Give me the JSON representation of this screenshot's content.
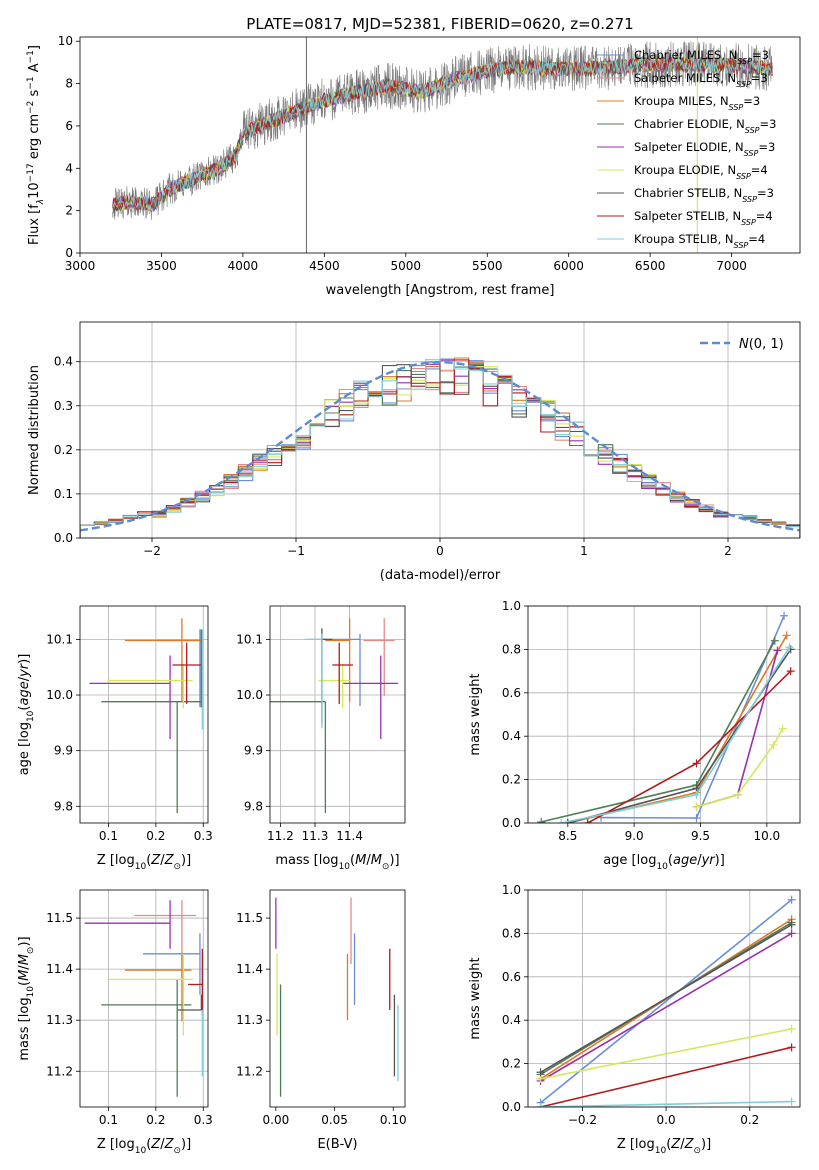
{
  "figure_title": "PLATE=0817, MJD=52381, FIBERID=0620, z=0.271",
  "colors": {
    "Chabrier MILES": "#6a8fd8",
    "Salpeter MILES": "#e58a8a",
    "Kroupa MILES": "#e0782a",
    "Chabrier ELODIE": "#4f7d58",
    "Salpeter ELODIE": "#9b2fae",
    "Kroupa ELODIE": "#d6e85a",
    "Chabrier STELIB": "#555555",
    "Salpeter STELIB": "#b31b1b",
    "Kroupa STELIB": "#7fcfd9",
    "normal": "#5b8bd6"
  },
  "chart_data": [
    {
      "id": "spectrum",
      "type": "line",
      "title": "PLATE=0817, MJD=52381, FIBERID=0620, z=0.271",
      "xlabel": "wavelength [Angstrom, rest frame]",
      "ylabel": "Flux [f_λ 10^-17 erg cm^-2 s^-1 A^-1]",
      "xlim": [
        3000,
        7420
      ],
      "ylim": [
        0,
        10.2
      ],
      "xticks": [
        3000,
        3500,
        4000,
        4500,
        5000,
        5500,
        6000,
        6500,
        7000
      ],
      "yticks": [
        0,
        2,
        4,
        6,
        8,
        10
      ],
      "grid": false,
      "legend_position": "right",
      "continuum": {
        "x": [
          3200,
          3300,
          3450,
          3550,
          3700,
          3850,
          3950,
          4000,
          4100,
          4300,
          4500,
          4700,
          4900,
          5100,
          5300,
          5500,
          5700,
          5900,
          6100,
          6300,
          6500,
          6700,
          6900,
          7100,
          7250
        ],
        "y": [
          2.3,
          2.4,
          2.3,
          3.0,
          3.5,
          4.0,
          4.5,
          5.6,
          6.0,
          6.6,
          7.2,
          7.6,
          7.9,
          7.6,
          8.2,
          8.6,
          8.8,
          8.7,
          8.7,
          8.8,
          8.9,
          8.9,
          8.9,
          8.8,
          8.7
        ]
      },
      "series": [
        {
          "name": "Chabrier MILES, N_SSP=3"
        },
        {
          "name": "Salpeter MILES, N_SSP=3"
        },
        {
          "name": "Kroupa MILES, N_SSP=3"
        },
        {
          "name": "Chabrier ELODIE, N_SSP=3"
        },
        {
          "name": "Salpeter ELODIE, N_SSP=3"
        },
        {
          "name": "Kroupa ELODIE, N_SSP=4"
        },
        {
          "name": "Chabrier STELIB, N_SSP=3"
        },
        {
          "name": "Salpeter STELIB, N_SSP=4"
        },
        {
          "name": "Kroupa STELIB, N_SSP=4"
        }
      ],
      "legend": [
        "Chabrier MILES, N_SSP=3",
        "Salpeter MILES, N_SSP=3",
        "Kroupa MILES, N_SSP=3",
        "Chabrier ELODIE, N_SSP=3",
        "Salpeter ELODIE, N_SSP=3",
        "Kroupa ELODIE, N_SSP=4",
        "Chabrier STELIB, N_SSP=3",
        "Salpeter STELIB, N_SSP=4",
        "Kroupa STELIB, N_SSP=4"
      ]
    },
    {
      "id": "residuals",
      "type": "histogram",
      "xlabel": "(data-model)/error",
      "ylabel": "Normed distribution",
      "xlim": [
        -2.5,
        2.5
      ],
      "ylim": [
        0,
        0.49
      ],
      "xticks": [
        -2,
        -1,
        0,
        1,
        2
      ],
      "yticks": [
        0.0,
        0.1,
        0.2,
        0.3,
        0.4
      ],
      "grid": true,
      "legend_position": "top-right",
      "legend": [
        "N(0,1)"
      ],
      "bin_width": 0.1,
      "bins_start": -2.5,
      "reference_curve": {
        "name": "N(0,1)",
        "mean": 0,
        "sigma": 1
      }
    },
    {
      "id": "age-vs-Z",
      "type": "errorbar",
      "xlabel": "Z [log10(Z/Z_sun)]",
      "ylabel": "age [log10(age/yr)]",
      "xlim": [
        0.04,
        0.31
      ],
      "ylim": [
        9.77,
        10.16
      ],
      "xticks": [
        0.1,
        0.2,
        0.3
      ],
      "yticks": [
        9.8,
        9.9,
        10.0,
        10.1
      ],
      "grid": true,
      "points": [
        {
          "series": "Chabrier MILES",
          "x": 0.293,
          "xerr": [
            0.09,
            0.0
          ],
          "y": 10.098,
          "yerr": [
            0.12,
            0.02
          ]
        },
        {
          "series": "Kroupa MILES",
          "x": 0.255,
          "xerr": [
            0.12,
            0.04
          ],
          "y": 10.098,
          "yerr": [
            0.11,
            0.04
          ]
        },
        {
          "series": "Chabrier ELODIE",
          "x": 0.245,
          "xerr": [
            0.16,
            0.05
          ],
          "y": 9.988,
          "yerr": [
            0.2,
            0.0
          ]
        },
        {
          "series": "Salpeter ELODIE",
          "x": 0.23,
          "xerr": [
            0.17,
            0.0
          ],
          "y": 10.021,
          "yerr": [
            0.1,
            0.05
          ]
        },
        {
          "series": "Kroupa ELODIE",
          "x": 0.258,
          "xerr": [
            0.16,
            0.02
          ],
          "y": 10.026,
          "yerr": [
            0.05,
            0.03
          ]
        },
        {
          "series": "Chabrier STELIB",
          "x": 0.296,
          "xerr": [
            0.0,
            0.0
          ],
          "y": 10.098,
          "yerr": [
            0.12,
            0.02
          ]
        },
        {
          "series": "Salpeter STELIB",
          "x": 0.265,
          "xerr": [
            0.03,
            0.03
          ],
          "y": 10.054,
          "yerr": [
            0.07,
            0.04
          ]
        },
        {
          "series": "Kroupa STELIB",
          "x": 0.298,
          "xerr": [
            0.0,
            0.0
          ],
          "y": 10.098,
          "yerr": [
            0.16,
            0.02
          ]
        }
      ]
    },
    {
      "id": "age-vs-mass",
      "type": "errorbar",
      "xlabel": "mass [log10(M/M_sun)]",
      "ylabel": "",
      "xlim": [
        11.17,
        11.56
      ],
      "ylim": [
        9.77,
        10.16
      ],
      "xticks": [
        11.2,
        11.3,
        11.4
      ],
      "yticks": [
        9.8,
        9.9,
        10.0,
        10.1
      ],
      "grid": true,
      "points": [
        {
          "series": "Chabrier MILES",
          "x": 11.43,
          "xerr": [
            0.15,
            0.0
          ],
          "y": 10.1,
          "yerr": [
            0.12,
            0.01
          ]
        },
        {
          "series": "Salpeter MILES",
          "x": 11.5,
          "xerr": [
            0.06,
            0.03
          ],
          "y": 10.098,
          "yerr": [
            0.1,
            0.04
          ]
        },
        {
          "series": "Kroupa MILES",
          "x": 11.4,
          "xerr": [
            0.07,
            0.0
          ],
          "y": 10.098,
          "yerr": [
            0.11,
            0.04
          ]
        },
        {
          "series": "Chabrier ELODIE",
          "x": 11.33,
          "xerr": [
            0.16,
            0.0
          ],
          "y": 9.988,
          "yerr": [
            0.2,
            0.0
          ]
        },
        {
          "series": "Salpeter ELODIE",
          "x": 11.49,
          "xerr": [
            0.11,
            0.05
          ],
          "y": 10.021,
          "yerr": [
            0.1,
            0.05
          ]
        },
        {
          "series": "Kroupa ELODIE",
          "x": 11.38,
          "xerr": [
            0.07,
            0.02
          ],
          "y": 10.026,
          "yerr": [
            0.05,
            0.03
          ]
        },
        {
          "series": "Chabrier STELIB",
          "x": 11.32,
          "xerr": [
            0.0,
            0.03
          ],
          "y": 10.1,
          "yerr": [
            0.15,
            0.02
          ]
        },
        {
          "series": "Salpeter STELIB",
          "x": 11.37,
          "xerr": [
            0.02,
            0.04
          ],
          "y": 10.054,
          "yerr": [
            0.07,
            0.04
          ]
        },
        {
          "series": "Kroupa STELIB",
          "x": 11.32,
          "xerr": [
            0.05,
            0.0
          ],
          "y": 10.1,
          "yerr": [
            0.16,
            0.01
          ]
        }
      ]
    },
    {
      "id": "mass-weight-vs-age",
      "type": "line",
      "xlabel": "age [log10(age/yr)]",
      "ylabel": "mass weight",
      "xlim": [
        8.2,
        10.25
      ],
      "ylim": [
        0,
        1.0
      ],
      "xticks": [
        8.5,
        9.0,
        9.5,
        10.0
      ],
      "yticks": [
        0.0,
        0.2,
        0.4,
        0.6,
        0.8,
        1.0
      ],
      "grid": true,
      "series": [
        {
          "name": "Chabrier MILES",
          "x": [
            8.75,
            9.47,
            10.13
          ],
          "y": [
            0.025,
            0.023,
            0.955
          ]
        },
        {
          "name": "Kroupa MILES",
          "x": [
            8.5,
            9.47,
            10.15
          ],
          "y": [
            0.0,
            0.14,
            0.865
          ]
        },
        {
          "name": "Chabrier ELODIE",
          "x": [
            8.3,
            9.47,
            10.06
          ],
          "y": [
            0.005,
            0.175,
            0.84
          ]
        },
        {
          "name": "Salpeter ELODIE",
          "x": [
            9.47,
            9.78,
            10.08
          ],
          "y": [
            0.075,
            0.13,
            0.795
          ]
        },
        {
          "name": "Kroupa ELODIE",
          "x": [
            9.47,
            9.78,
            10.05,
            10.12
          ],
          "y": [
            0.075,
            0.13,
            0.36,
            0.435
          ]
        },
        {
          "name": "Chabrier STELIB",
          "x": [
            8.5,
            9.47,
            10.18
          ],
          "y": [
            0.0,
            0.16,
            0.8
          ]
        },
        {
          "name": "Salpeter STELIB",
          "x": [
            8.65,
            9.47,
            10.18
          ],
          "y": [
            0.0,
            0.275,
            0.7
          ]
        },
        {
          "name": "Kroupa STELIB",
          "x": [
            8.45,
            9.47,
            10.17
          ],
          "y": [
            0.0,
            0.13,
            0.81
          ]
        }
      ]
    },
    {
      "id": "mass-vs-Z",
      "type": "errorbar",
      "xlabel": "Z [log10(Z/Z_sun)]",
      "ylabel": "mass [log10(M/M_sun)]",
      "xlim": [
        0.04,
        0.31
      ],
      "ylim": [
        11.13,
        11.555
      ],
      "xticks": [
        0.1,
        0.2,
        0.3
      ],
      "yticks": [
        11.2,
        11.3,
        11.4,
        11.5
      ],
      "grid": true,
      "points": [
        {
          "series": "Chabrier MILES",
          "x": 0.293,
          "xerr": [
            0.12,
            0.0
          ],
          "y": 11.43,
          "yerr": [
            0.08,
            0.04
          ]
        },
        {
          "series": "Salpeter MILES",
          "x": 0.255,
          "xerr": [
            0.1,
            0.03
          ],
          "y": 11.505,
          "yerr": [
            0.12,
            0.03
          ]
        },
        {
          "series": "Kroupa MILES",
          "x": 0.255,
          "xerr": [
            0.12,
            0.02
          ],
          "y": 11.398,
          "yerr": [
            0.1,
            0.03
          ]
        },
        {
          "series": "Chabrier ELODIE",
          "x": 0.245,
          "xerr": [
            0.16,
            0.03
          ],
          "y": 11.33,
          "yerr": [
            0.18,
            0.05
          ]
        },
        {
          "series": "Salpeter ELODIE",
          "x": 0.23,
          "xerr": [
            0.18,
            0.0
          ],
          "y": 11.49,
          "yerr": [
            0.05,
            0.045
          ]
        },
        {
          "series": "Kroupa ELODIE",
          "x": 0.258,
          "xerr": [
            0.16,
            0.02
          ],
          "y": 11.38,
          "yerr": [
            0.11,
            0.05
          ]
        },
        {
          "series": "Chabrier STELIB",
          "x": 0.296,
          "xerr": [
            0.05,
            0.0
          ],
          "y": 11.32,
          "yerr": [
            0.0,
            0.03
          ]
        },
        {
          "series": "Salpeter STELIB",
          "x": 0.298,
          "xerr": [
            0.03,
            0.0
          ],
          "y": 11.37,
          "yerr": [
            0.06,
            0.07
          ]
        },
        {
          "series": "Kroupa STELIB",
          "x": 0.298,
          "xerr": [
            0.0,
            0.0
          ],
          "y": 11.32,
          "yerr": [
            0.13,
            0.0
          ]
        }
      ]
    },
    {
      "id": "mass-vs-EBV",
      "type": "errorbar",
      "xlabel": "E(B-V)",
      "ylabel": "",
      "xlim": [
        -0.005,
        0.11
      ],
      "ylim": [
        11.13,
        11.555
      ],
      "xticks": [
        0.0,
        0.05,
        0.1
      ],
      "yticks": [
        11.2,
        11.3,
        11.4,
        11.5
      ],
      "grid": false,
      "points": [
        {
          "series": "Chabrier MILES",
          "x": 0.067,
          "xerr": [
            0,
            0
          ],
          "y": 11.4,
          "yerr": [
            0.07,
            0.07
          ]
        },
        {
          "series": "Salpeter MILES",
          "x": 0.064,
          "xerr": [
            0,
            0
          ],
          "y": 11.48,
          "yerr": [
            0.07,
            0.06
          ]
        },
        {
          "series": "Kroupa MILES",
          "x": 0.061,
          "xerr": [
            0,
            0
          ],
          "y": 11.36,
          "yerr": [
            0.06,
            0.07
          ]
        },
        {
          "series": "Chabrier ELODIE",
          "x": 0.004,
          "xerr": [
            0,
            0
          ],
          "y": 11.26,
          "yerr": [
            0.11,
            0.11
          ]
        },
        {
          "series": "Salpeter ELODIE",
          "x": 0.0,
          "xerr": [
            0,
            0
          ],
          "y": 11.49,
          "yerr": [
            0.05,
            0.05
          ]
        },
        {
          "series": "Kroupa ELODIE",
          "x": 0.001,
          "xerr": [
            0,
            0
          ],
          "y": 11.33,
          "yerr": [
            0.06,
            0.1
          ]
        },
        {
          "series": "Chabrier STELIB",
          "x": 0.101,
          "xerr": [
            0,
            0
          ],
          "y": 11.28,
          "yerr": [
            0.09,
            0.07
          ]
        },
        {
          "series": "Salpeter STELIB",
          "x": 0.097,
          "xerr": [
            0,
            0
          ],
          "y": 11.38,
          "yerr": [
            0.06,
            0.06
          ]
        },
        {
          "series": "Kroupa STELIB",
          "x": 0.104,
          "xerr": [
            0,
            0
          ],
          "y": 11.25,
          "yerr": [
            0.07,
            0.08
          ]
        }
      ]
    },
    {
      "id": "mass-weight-vs-Z",
      "type": "line",
      "xlabel": "Z [log10(Z/Z_sun)]",
      "ylabel": "mass weight",
      "xlim": [
        -0.33,
        0.32
      ],
      "ylim": [
        0,
        1.0
      ],
      "xticks": [
        -0.2,
        0.0,
        0.2
      ],
      "yticks": [
        0.0,
        0.2,
        0.4,
        0.6,
        0.8,
        1.0
      ],
      "grid": true,
      "series": [
        {
          "name": "Chabrier MILES",
          "x": [
            -0.3,
            0.3
          ],
          "y": [
            0.02,
            0.955
          ]
        },
        {
          "name": "Kroupa MILES",
          "x": [
            -0.3,
            0.3
          ],
          "y": [
            0.13,
            0.865
          ]
        },
        {
          "name": "Chabrier ELODIE",
          "x": [
            -0.3,
            0.3
          ],
          "y": [
            0.15,
            0.85
          ]
        },
        {
          "name": "Salpeter ELODIE",
          "x": [
            -0.3,
            0.3
          ],
          "y": [
            0.12,
            0.8
          ]
        },
        {
          "name": "Kroupa ELODIE",
          "x": [
            -0.3,
            0.3
          ],
          "y": [
            0.13,
            0.36
          ]
        },
        {
          "name": "Chabrier STELIB",
          "x": [
            -0.3,
            0.3
          ],
          "y": [
            0.16,
            0.84
          ]
        },
        {
          "name": "Salpeter STELIB",
          "x": [
            -0.3,
            0.3
          ],
          "y": [
            0.0,
            0.275
          ]
        },
        {
          "name": "Kroupa STELIB",
          "x": [
            -0.3,
            0.3
          ],
          "y": [
            0.0,
            0.025
          ]
        }
      ]
    }
  ]
}
